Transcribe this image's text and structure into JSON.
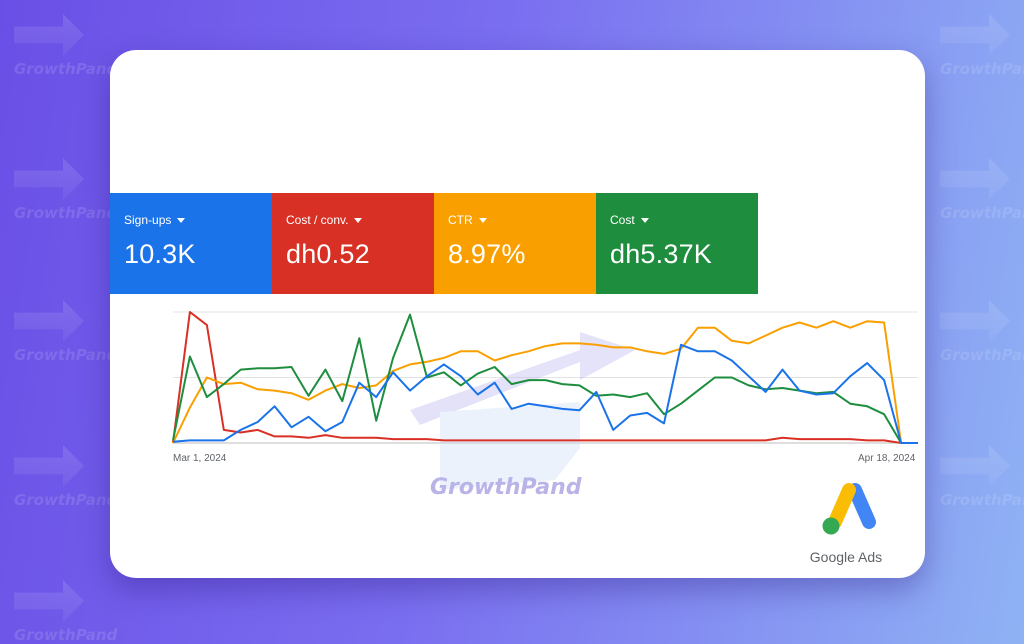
{
  "background": {
    "watermark_text": "GrowthPand",
    "colors": {
      "gradient_start": "#6a4fe6",
      "gradient_end": "#8fb2f4"
    }
  },
  "card": {
    "metrics": [
      {
        "label": "Sign-ups",
        "value": "10.3K",
        "color": "#1a73e8"
      },
      {
        "label": "Cost / conv.",
        "value": "dh0.52",
        "color": "#d93025"
      },
      {
        "label": "CTR",
        "value": "8.97%",
        "color": "#f9a000"
      },
      {
        "label": "Cost",
        "value": "dh5.37K",
        "color": "#1e8e3e"
      }
    ],
    "chart": {
      "x_start_label": "Mar 1, 2024",
      "x_end_label": "Apr 18, 2024"
    },
    "watermark_text": "GrowthPand",
    "brand": {
      "label": "Google Ads",
      "icon": "google-ads-logo"
    }
  },
  "chart_data": {
    "type": "line",
    "x_start": "Mar 1, 2024",
    "x_end": "Apr 18, 2024",
    "ylim": [
      0,
      1
    ],
    "grid": true,
    "series": [
      {
        "name": "Sign-ups",
        "color": "#1a73e8",
        "values": [
          0.01,
          0.02,
          0.02,
          0.02,
          0.1,
          0.16,
          0.28,
          0.12,
          0.2,
          0.09,
          0.16,
          0.46,
          0.35,
          0.54,
          0.4,
          0.51,
          0.6,
          0.51,
          0.37,
          0.46,
          0.26,
          0.3,
          0.28,
          0.26,
          0.25,
          0.39,
          0.1,
          0.21,
          0.23,
          0.15,
          0.75,
          0.7,
          0.7,
          0.63,
          0.51,
          0.39,
          0.56,
          0.4,
          0.37,
          0.38,
          0.51,
          0.61,
          0.48,
          0.0,
          0.0
        ]
      },
      {
        "name": "Cost / conv.",
        "color": "#d93025",
        "values": [
          0.0,
          1.0,
          0.9,
          0.1,
          0.08,
          0.1,
          0.05,
          0.05,
          0.04,
          0.06,
          0.04,
          0.04,
          0.04,
          0.03,
          0.03,
          0.03,
          0.02,
          0.02,
          0.02,
          0.02,
          0.02,
          0.02,
          0.02,
          0.02,
          0.02,
          0.02,
          0.02,
          0.02,
          0.02,
          0.02,
          0.02,
          0.02,
          0.02,
          0.02,
          0.02,
          0.02,
          0.04,
          0.03,
          0.03,
          0.03,
          0.03,
          0.02,
          0.02,
          0.0,
          0.0
        ]
      },
      {
        "name": "CTR",
        "color": "#f9a000",
        "values": [
          0.0,
          0.27,
          0.5,
          0.45,
          0.46,
          0.41,
          0.4,
          0.38,
          0.33,
          0.4,
          0.45,
          0.42,
          0.44,
          0.55,
          0.6,
          0.62,
          0.65,
          0.7,
          0.7,
          0.63,
          0.67,
          0.7,
          0.74,
          0.76,
          0.76,
          0.75,
          0.73,
          0.73,
          0.7,
          0.68,
          0.72,
          0.88,
          0.88,
          0.78,
          0.76,
          0.82,
          0.88,
          0.92,
          0.88,
          0.93,
          0.88,
          0.93,
          0.92,
          0.0,
          0.0
        ]
      },
      {
        "name": "Cost",
        "color": "#1e8e3e",
        "values": [
          0.02,
          0.66,
          0.35,
          0.45,
          0.56,
          0.57,
          0.57,
          0.58,
          0.36,
          0.56,
          0.32,
          0.8,
          0.17,
          0.65,
          0.98,
          0.5,
          0.54,
          0.44,
          0.53,
          0.58,
          0.45,
          0.48,
          0.48,
          0.45,
          0.44,
          0.36,
          0.37,
          0.35,
          0.38,
          0.22,
          0.3,
          0.4,
          0.5,
          0.5,
          0.44,
          0.41,
          0.42,
          0.4,
          0.38,
          0.39,
          0.3,
          0.28,
          0.22,
          0.0,
          0.0
        ]
      }
    ]
  }
}
